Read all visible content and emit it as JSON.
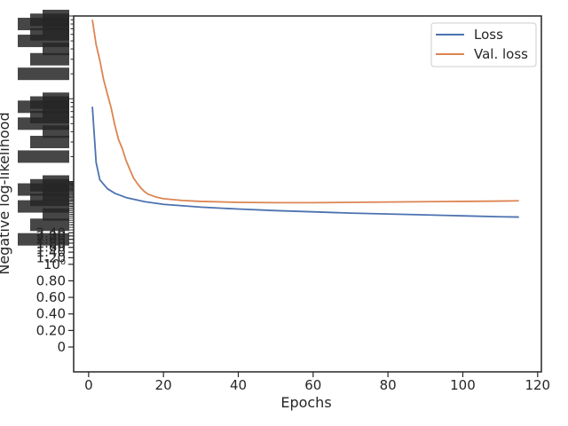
{
  "chart_data": {
    "type": "line",
    "title": "",
    "xlabel": "Epochs",
    "ylabel": "Negative log-likelihood",
    "xlim": [
      -4,
      121
    ],
    "xticks": [
      0,
      20,
      40,
      60,
      80,
      100,
      120
    ],
    "yscale": "symlog",
    "ylim": [
      -0.3,
      1000
    ],
    "yticks_linear": [
      {
        "value": 0,
        "label": "0"
      },
      {
        "value": 0.2,
        "label": "0.20"
      },
      {
        "value": 0.4,
        "label": "0.40"
      },
      {
        "value": 0.6,
        "label": "0.60"
      },
      {
        "value": 0.8,
        "label": "0.80"
      },
      {
        "value": 1,
        "label": "10⁰"
      },
      {
        "value": 1.2,
        "label": "1.20"
      },
      {
        "value": 1.4,
        "label": "1.40"
      },
      {
        "value": 1.6,
        "label": "1.60"
      },
      {
        "value": 1.8,
        "label": "1.80"
      },
      {
        "value": 2.0,
        "label": "2.00"
      },
      {
        "value": 2.2,
        "label": "2.20"
      },
      {
        "value": 2.4,
        "label": "2.40"
      }
    ],
    "grid": false,
    "legend_position": "top-right",
    "series": [
      {
        "name": "Loss",
        "color": "#4c72b0",
        "x": [
          1,
          2,
          3,
          5,
          7,
          10,
          15,
          20,
          30,
          40,
          50,
          60,
          70,
          80,
          90,
          100,
          110,
          115
        ],
        "y": [
          80,
          17,
          10.5,
          8.2,
          7.2,
          6.4,
          5.7,
          5.3,
          4.9,
          4.65,
          4.45,
          4.3,
          4.15,
          4.05,
          3.95,
          3.85,
          3.75,
          3.72
        ]
      },
      {
        "name": "Val. loss",
        "color": "#dd8452",
        "x": [
          1,
          2,
          3,
          4,
          5,
          6,
          7,
          8,
          9,
          10,
          11,
          12,
          13,
          14,
          15,
          16,
          18,
          20,
          25,
          30,
          40,
          50,
          60,
          70,
          80,
          90,
          100,
          110,
          115
        ],
        "y": [
          900,
          450,
          290,
          170,
          115,
          78,
          48,
          32,
          25,
          18,
          14,
          11,
          9.5,
          8.3,
          7.5,
          7.0,
          6.5,
          6.2,
          5.9,
          5.75,
          5.6,
          5.55,
          5.55,
          5.6,
          5.65,
          5.7,
          5.75,
          5.8,
          5.85
        ]
      }
    ]
  }
}
